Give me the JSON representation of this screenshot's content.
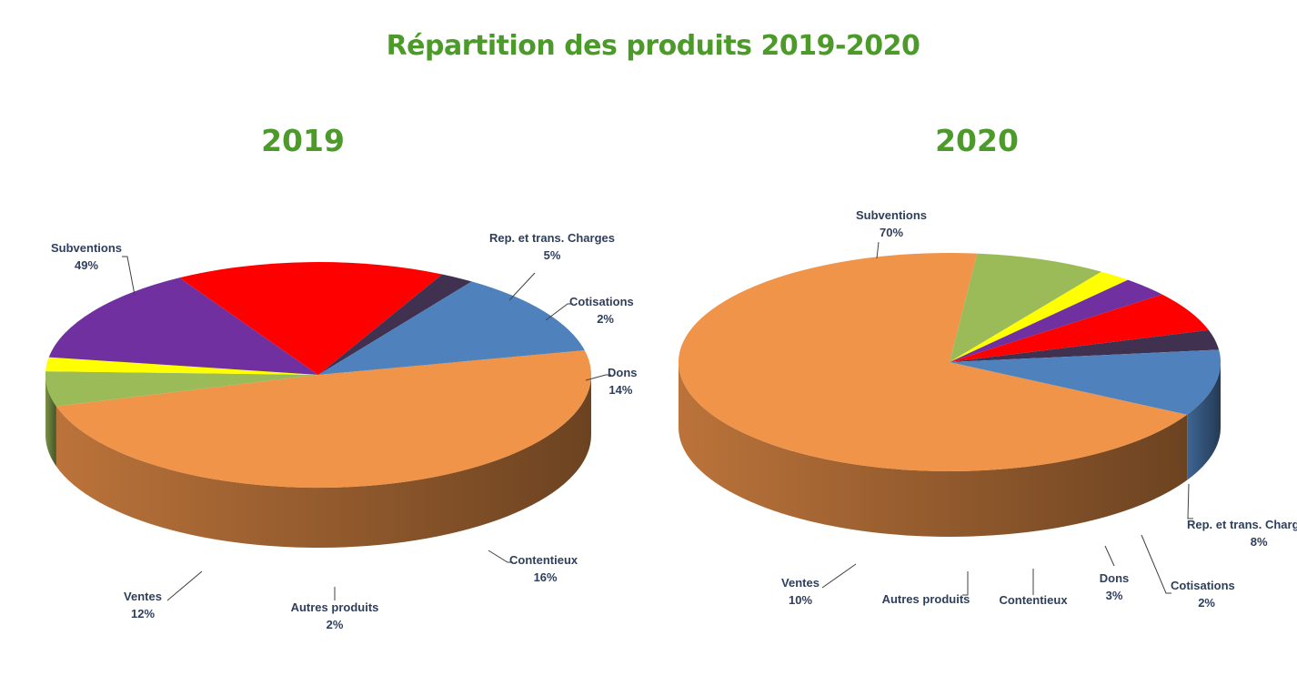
{
  "title": "Répartition des produits 2019-2020",
  "chart_data": [
    {
      "type": "pie",
      "title": "2019",
      "slices": [
        {
          "label": "Subventions",
          "value": 49,
          "value_label": "49%",
          "color": "#F0944A"
        },
        {
          "label": "Rep. et trans. Charges",
          "value": 5,
          "value_label": "5%",
          "color": "#9BBB59"
        },
        {
          "label": "Cotisations",
          "value": 2,
          "value_label": "2%",
          "color": "#FFFF00"
        },
        {
          "label": "Dons",
          "value": 14,
          "value_label": "14%",
          "color": "#7030A0"
        },
        {
          "label": "Contentieux",
          "value": 16,
          "value_label": "16%",
          "color": "#FF0000"
        },
        {
          "label": "Autres produits",
          "value": 2,
          "value_label": "2%",
          "color": "#403151"
        },
        {
          "label": "Ventes",
          "value": 12,
          "value_label": "12%",
          "color": "#4F81BD"
        }
      ]
    },
    {
      "type": "pie",
      "title": "2020",
      "slices": [
        {
          "label": "Subventions",
          "value": 70,
          "value_label": "70%",
          "color": "#F0944A"
        },
        {
          "label": "Rep. et trans. Charges",
          "value": 8,
          "value_label": "8%",
          "color": "#9BBB59"
        },
        {
          "label": "Cotisations",
          "value": 2,
          "value_label": "2%",
          "color": "#FFFF00"
        },
        {
          "label": "Dons",
          "value": 3,
          "value_label": "3%",
          "color": "#7030A0"
        },
        {
          "label": "Contentieux",
          "value": "",
          "value_label": "",
          "color": "#FF0000"
        },
        {
          "label": "Autres produits",
          "value": "",
          "value_label": "",
          "color": "#403151"
        },
        {
          "label": "Ventes",
          "value": 10,
          "value_label": "10%",
          "color": "#4F81BD"
        }
      ]
    }
  ]
}
